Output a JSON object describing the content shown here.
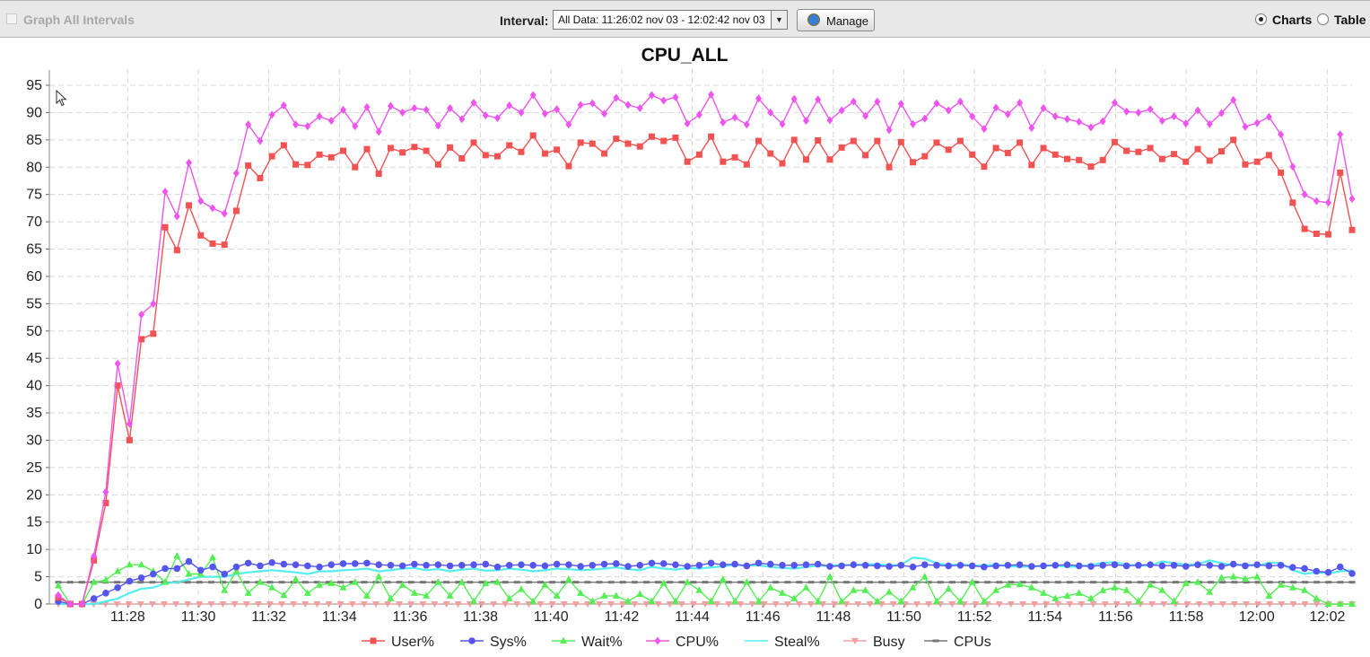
{
  "toolbar": {
    "graph_all_label": "Graph All Intervals",
    "interval_label": "Interval:",
    "interval_value": "All Data: 11:26:02 nov 03 - 12:02:42 nov 03",
    "manage_label": "Manage",
    "charts_label": "Charts",
    "table_label": "Table",
    "charts_selected": true
  },
  "chart_data": {
    "type": "line",
    "title": "CPU_ALL",
    "xlabel": "",
    "ylabel": "",
    "ylim": [
      0,
      95
    ],
    "yticks": [
      0,
      5,
      10,
      15,
      20,
      25,
      30,
      35,
      40,
      45,
      50,
      55,
      60,
      65,
      70,
      75,
      80,
      85,
      90,
      95
    ],
    "x_ticks": [
      "11:28",
      "11:30",
      "11:32",
      "11:34",
      "11:36",
      "11:38",
      "11:40",
      "11:42",
      "11:44",
      "11:46",
      "11:48",
      "11:50",
      "11:52",
      "11:54",
      "11:56",
      "11:58",
      "12:00",
      "12:02"
    ],
    "x_ticks_minutes": [
      1.967,
      3.967,
      5.967,
      7.967,
      9.967,
      11.967,
      13.967,
      15.967,
      17.967,
      19.967,
      21.967,
      23.967,
      25.967,
      27.967,
      29.967,
      31.967,
      33.967,
      35.967
    ],
    "xlim_minutes": [
      0,
      36.67
    ],
    "grid": true,
    "legend_position": "bottom",
    "series": [
      {
        "name": "User%",
        "color": "#f25252",
        "marker": "square",
        "values": [
          1.2,
          0,
          0,
          8,
          18.5,
          40,
          30,
          48.5,
          49.5,
          69,
          64.8,
          73,
          67.5,
          66,
          65.8,
          72,
          80.3,
          78,
          82,
          84,
          80.5,
          80.4,
          82.3,
          81.8,
          83,
          80,
          83.3,
          78.8,
          83.5,
          82.7,
          83.7,
          83,
          80.5,
          83.6,
          81.6,
          84.5,
          82.2,
          82,
          84,
          82.8,
          85.8,
          82.5,
          83.2,
          80.2,
          84.5,
          84.3,
          82.5,
          85.2,
          84.3,
          83.8,
          85.6,
          84.8,
          85.4,
          81,
          82.3,
          85.6,
          81,
          81.8,
          80.5,
          84.8,
          82.5,
          80.7,
          85,
          81.4,
          84.9,
          81.4,
          83.6,
          84.8,
          82.2,
          84.8,
          80,
          84.6,
          80.9,
          82,
          84.5,
          83.2,
          84.8,
          82.3,
          80.1,
          83.5,
          82.6,
          84.5,
          80.4,
          83.5,
          82.3,
          81.5,
          81.3,
          80.1,
          81.3,
          84.6,
          83,
          82.8,
          83.5,
          81.5,
          82.4,
          81,
          83.3,
          81.2,
          82.9,
          85,
          80.5,
          81,
          82.2,
          79,
          73.5,
          68.7,
          67.8,
          67.7,
          79,
          68.5
        ]
      },
      {
        "name": "Sys%",
        "color": "#5555ee",
        "marker": "circle",
        "values": [
          0.5,
          0,
          0,
          1,
          2,
          3,
          4.2,
          4.8,
          5.5,
          6.5,
          6.5,
          7.8,
          6.2,
          6.8,
          5.5,
          6.8,
          7.5,
          7,
          7.6,
          7.3,
          7.2,
          7,
          6.8,
          7.2,
          7.4,
          7.4,
          7.5,
          7.2,
          7.1,
          7,
          7.3,
          7.1,
          7.2,
          7,
          7.1,
          7.2,
          7.3,
          6.8,
          7.1,
          7.2,
          7.1,
          7,
          7.3,
          7.2,
          6.9,
          7.1,
          7.3,
          7.4,
          6.9,
          7.1,
          7.5,
          7.4,
          7.2,
          6.9,
          7.1,
          7.5,
          7.2,
          7.3,
          7,
          7.5,
          7.3,
          7.1,
          7.1,
          7.2,
          7.3,
          6.9,
          7,
          7.2,
          7.1,
          7,
          6.9,
          7.1,
          6.8,
          7.2,
          7.1,
          7,
          7.1,
          7,
          6.8,
          7,
          7.1,
          7.2,
          6.9,
          7,
          7.1,
          7.2,
          7,
          6.9,
          7.1,
          7.2,
          7,
          7.1,
          7.2,
          7,
          7.1,
          6.9,
          7.2,
          7.1,
          6.9,
          7.3,
          7,
          7.2,
          7,
          7.1,
          6.7,
          6.5,
          6,
          5.8,
          6.8,
          5.6
        ]
      },
      {
        "name": "Wait%",
        "color": "#55ee55",
        "marker": "triangle",
        "values": [
          3.4,
          0,
          0,
          4,
          4.4,
          6,
          7.2,
          7.2,
          6,
          4,
          8.8,
          5.5,
          5.5,
          8.5,
          2.5,
          6,
          2,
          4,
          3,
          1.6,
          4.5,
          2,
          3.5,
          3.8,
          3,
          4,
          1.5,
          5,
          1,
          3.5,
          2,
          1.5,
          4,
          1.5,
          4,
          0.5,
          3.8,
          4,
          1,
          2.7,
          0.5,
          3.5,
          1.5,
          4.5,
          2,
          0.5,
          1.5,
          1.5,
          0.5,
          1.8,
          0.5,
          3.8,
          0.5,
          4,
          2.5,
          0.5,
          4.5,
          0.5,
          4,
          0.5,
          3,
          2,
          1,
          3,
          0.5,
          5,
          0.5,
          2.5,
          2.5,
          0.5,
          2.2,
          0.5,
          3,
          5,
          0.5,
          2.8,
          0.5,
          4,
          0.5,
          2.5,
          3.5,
          3.6,
          3,
          2,
          1,
          1.5,
          2,
          1,
          2.5,
          3,
          2.5,
          0.5,
          3.5,
          2.5,
          0.5,
          3.8,
          4,
          2.2,
          4.8,
          5,
          4.6,
          5,
          1.5,
          3.5,
          3,
          2.5,
          1,
          0,
          0,
          0
        ]
      },
      {
        "name": "CPU%",
        "color": "#ee55ee",
        "marker": "diamond",
        "values": [
          1.6,
          0,
          0,
          8.8,
          20.5,
          44,
          33,
          53,
          55,
          75.5,
          71,
          80.8,
          73.8,
          72.5,
          71.5,
          78.9,
          87.8,
          84.8,
          89.6,
          91.3,
          87.8,
          87.5,
          89.3,
          88.5,
          90.5,
          87.5,
          91,
          86.5,
          91.2,
          90,
          90.8,
          90.5,
          87.6,
          90.8,
          88.8,
          91.8,
          89.5,
          89,
          91.3,
          90,
          93.2,
          89.8,
          90.6,
          87.8,
          91.4,
          91.7,
          89.8,
          92.7,
          91.4,
          90.8,
          93.2,
          92.2,
          92.8,
          88,
          89.6,
          93.3,
          88.2,
          89.1,
          87.8,
          92.6,
          90,
          87.9,
          92.5,
          88.5,
          92.4,
          88.6,
          90.4,
          92,
          89.4,
          92,
          86.8,
          91.6,
          87.9,
          88.9,
          91.7,
          90.4,
          92,
          89.3,
          87,
          90.9,
          89.7,
          91.8,
          87.2,
          90.8,
          89.3,
          88.8,
          88.3,
          87.3,
          88.4,
          91.8,
          90.2,
          90,
          90.6,
          88.5,
          89.3,
          88,
          90.4,
          87.9,
          89.9,
          92.3,
          87.4,
          88.1,
          89.2,
          86,
          80.1,
          75,
          73.8,
          73.5,
          86,
          74.2
        ]
      },
      {
        "name": "Steal%",
        "color": "#55eeee",
        "marker": "none",
        "values": [
          0,
          0,
          0,
          0,
          0.5,
          1,
          2,
          2.8,
          3,
          3.8,
          4,
          4.5,
          5,
          5,
          5,
          5.5,
          5.8,
          6,
          6.2,
          6,
          5.8,
          5.5,
          6,
          6,
          6.2,
          6.3,
          6.5,
          6,
          6.2,
          6.5,
          6.6,
          6.2,
          6.4,
          6,
          6.3,
          6.5,
          6.1,
          6.2,
          6.5,
          6.3,
          6,
          6.2,
          6.5,
          6.4,
          6.2,
          6.3,
          6.5,
          6.7,
          6.4,
          6.2,
          6.8,
          6.5,
          6.3,
          6.6,
          6.5,
          6.7,
          6.9,
          7.2,
          7,
          7.1,
          6.8,
          6.6,
          6.5,
          6.8,
          7,
          7,
          7.2,
          7.1,
          7.3,
          7.3,
          7.1,
          7.2,
          8.5,
          8.3,
          7.5,
          7.1,
          7.3,
          7,
          7.1,
          7.2,
          7,
          6.8,
          6.9,
          7,
          7.1,
          6.8,
          6.9,
          7.2,
          7.5,
          7.7,
          7.2,
          7.1,
          7,
          7.8,
          7.5,
          7.2,
          7.3,
          8,
          7.5,
          7.1,
          7.3,
          7,
          7.6,
          7.5,
          6.2,
          5.5,
          5.8,
          5.6,
          6,
          6.2
        ]
      },
      {
        "name": "Busy",
        "color": "#f0a0a0",
        "marker": "triangle-down",
        "values": [
          0,
          0,
          0,
          0,
          0,
          0,
          0,
          0,
          0,
          0,
          0,
          0,
          0,
          0,
          0,
          0,
          0,
          0,
          0,
          0,
          0,
          0,
          0,
          0,
          0,
          0,
          0,
          0,
          0,
          0,
          0,
          0,
          0,
          0,
          0,
          0,
          0,
          0,
          0,
          0,
          0,
          0,
          0,
          0,
          0,
          0,
          0,
          0,
          0,
          0,
          0,
          0,
          0,
          0,
          0,
          0,
          0,
          0,
          0,
          0,
          0,
          0,
          0,
          0,
          0,
          0,
          0,
          0,
          0,
          0,
          0,
          0,
          0,
          0,
          0,
          0,
          0,
          0,
          0,
          0,
          0,
          0,
          0,
          0,
          0,
          0,
          0,
          0,
          0,
          0,
          0,
          0,
          0,
          0,
          0,
          0,
          0,
          0,
          0,
          0,
          0,
          0,
          0,
          0,
          0,
          0,
          0,
          0,
          0,
          0,
          0
        ]
      },
      {
        "name": "CPUs",
        "color": "#777777",
        "marker": "dash",
        "values": [
          4,
          4,
          4,
          4,
          4,
          4,
          4,
          4,
          4,
          4,
          4,
          4,
          4,
          4,
          4,
          4,
          4,
          4,
          4,
          4,
          4,
          4,
          4,
          4,
          4,
          4,
          4,
          4,
          4,
          4,
          4,
          4,
          4,
          4,
          4,
          4,
          4,
          4,
          4,
          4,
          4,
          4,
          4,
          4,
          4,
          4,
          4,
          4,
          4,
          4,
          4,
          4,
          4,
          4,
          4,
          4,
          4,
          4,
          4,
          4,
          4,
          4,
          4,
          4,
          4,
          4,
          4,
          4,
          4,
          4,
          4,
          4,
          4,
          4,
          4,
          4,
          4,
          4,
          4,
          4,
          4,
          4,
          4,
          4,
          4,
          4,
          4,
          4,
          4,
          4,
          4,
          4,
          4,
          4,
          4,
          4,
          4,
          4,
          4,
          4,
          4,
          4,
          4,
          4,
          4,
          4,
          4,
          4,
          4,
          4,
          4
        ]
      }
    ]
  }
}
